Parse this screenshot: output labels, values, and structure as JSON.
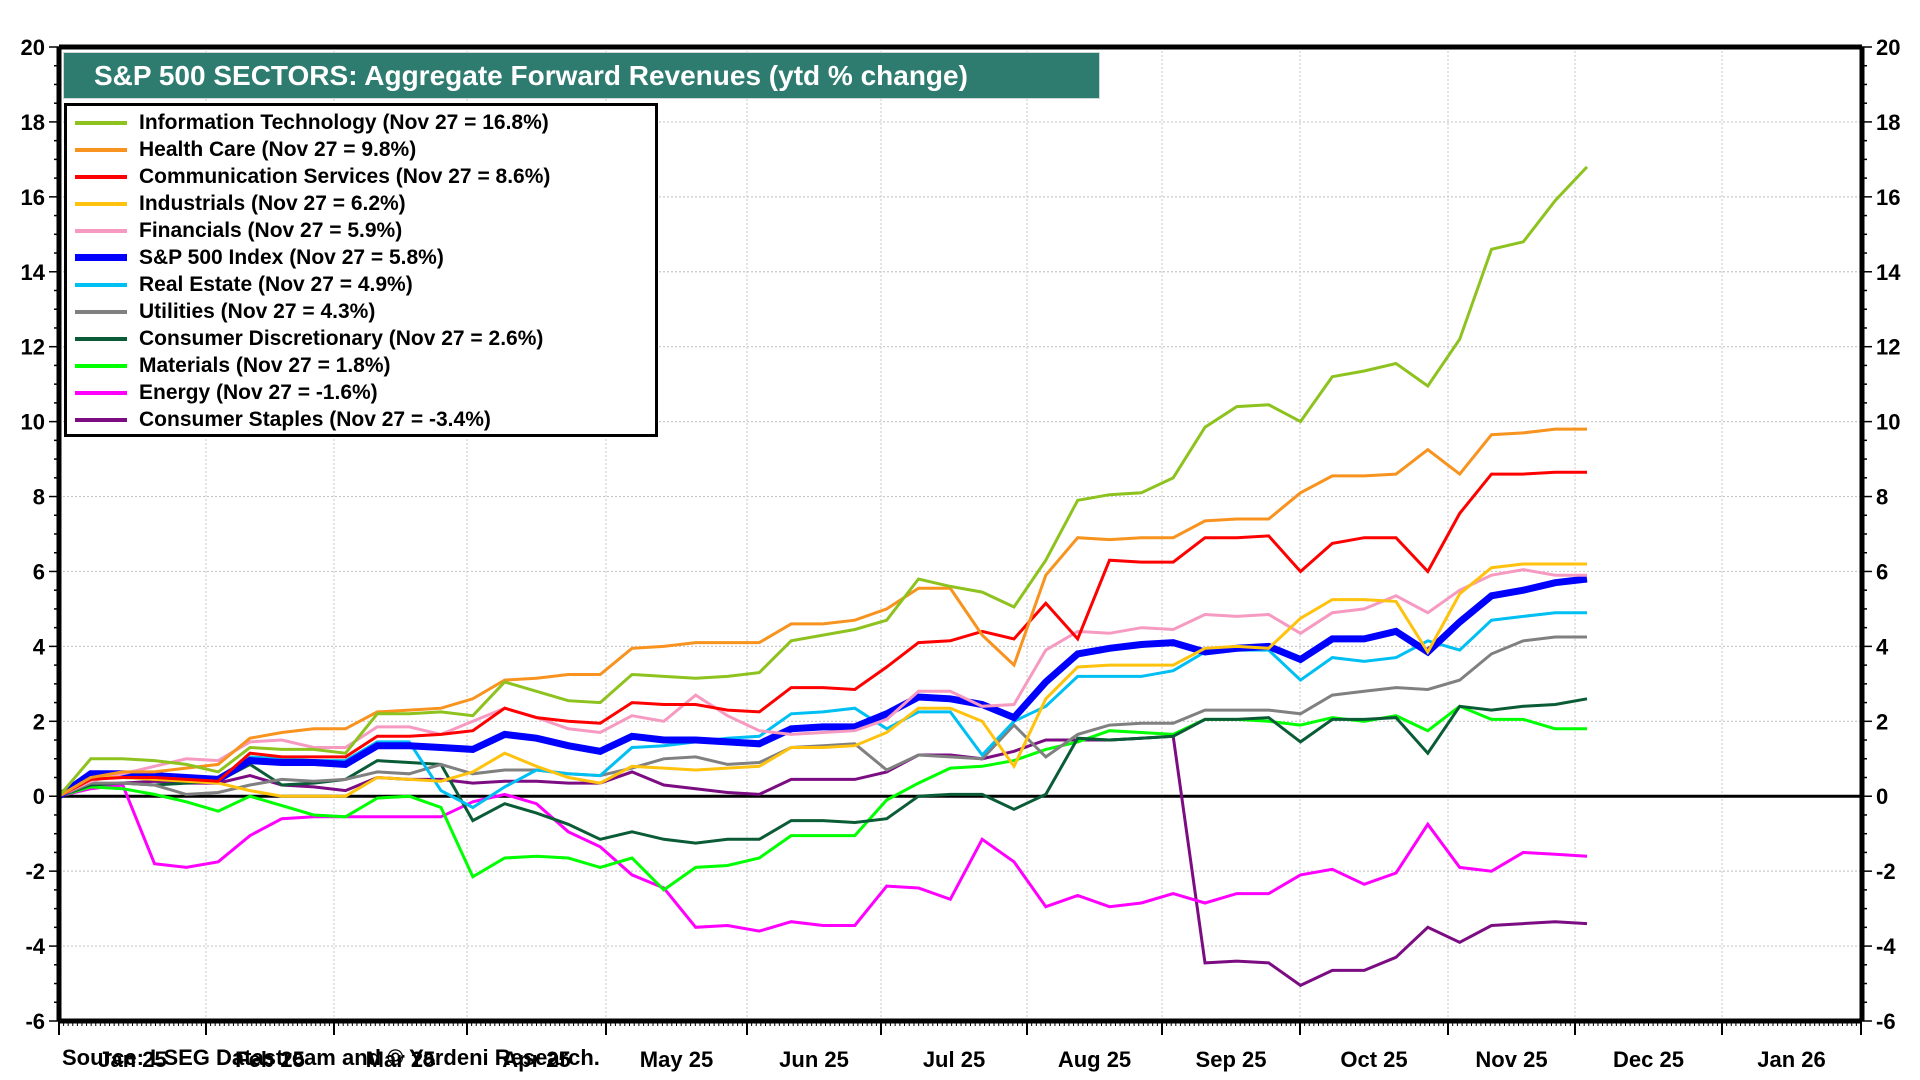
{
  "chart_data": {
    "type": "line",
    "title": "S&P 500 SECTORS: Aggregate Forward Revenues (ytd % change)",
    "xlabel": "",
    "ylabel": "",
    "ylim": [
      -6,
      20
    ],
    "yticks": [
      -6,
      -4,
      -2,
      0,
      2,
      4,
      6,
      8,
      10,
      12,
      14,
      16,
      18,
      20
    ],
    "yticks_right": [
      -6,
      -4,
      -2,
      0,
      2,
      4,
      6,
      8,
      10,
      12,
      14,
      16,
      18,
      20
    ],
    "x_range": [
      "Jan 1 2025",
      "Feb 1 2026"
    ],
    "x_ticks": [
      "Jan 25",
      "Feb 25",
      "Mar 25",
      "Apr 25",
      "May 25",
      "Jun 25",
      "Jul 25",
      "Aug 25",
      "Sep 25",
      "Oct 25",
      "Nov 25",
      "Dec 25",
      "Jan 26"
    ],
    "x_start": "Jan 1 2025",
    "x_end_data": "Nov 27 2025",
    "x_frequency": "weekly",
    "grid": true,
    "legend_position": "top-left",
    "series": [
      {
        "name": "Information Technology",
        "legend": "Information Technology (Nov 27 = 16.8%)",
        "color": "#8dc21f",
        "values": [
          0,
          1.0,
          1.0,
          0.95,
          0.85,
          0.65,
          1.3,
          1.25,
          1.25,
          1.15,
          2.2,
          2.2,
          2.25,
          2.15,
          3.05,
          2.8,
          2.55,
          2.5,
          3.25,
          3.2,
          3.15,
          3.2,
          3.3,
          4.15,
          4.3,
          4.45,
          4.7,
          5.8,
          5.6,
          5.45,
          5.05,
          6.3,
          7.9,
          8.05,
          8.1,
          8.5,
          9.85,
          10.4,
          10.45,
          10.0,
          11.2,
          11.35,
          11.55,
          10.95,
          12.2,
          14.6,
          14.8,
          15.9,
          16.8
        ]
      },
      {
        "name": "Health Care",
        "legend": "Health Care (Nov 27 = 9.8%)",
        "color": "#f7931e",
        "values": [
          0,
          0.5,
          0.65,
          0.65,
          0.75,
          0.85,
          1.55,
          1.7,
          1.8,
          1.8,
          2.25,
          2.3,
          2.35,
          2.6,
          3.1,
          3.15,
          3.25,
          3.25,
          3.95,
          4.0,
          4.1,
          4.1,
          4.1,
          4.6,
          4.6,
          4.7,
          5.0,
          5.55,
          5.55,
          4.3,
          3.5,
          5.9,
          6.9,
          6.85,
          6.9,
          6.9,
          7.35,
          7.4,
          7.4,
          8.1,
          8.55,
          8.55,
          8.6,
          9.25,
          8.6,
          9.65,
          9.7,
          9.8,
          9.8
        ]
      },
      {
        "name": "Communication Services",
        "legend": "Communication Services (Nov 27 = 8.6%)",
        "color": "#ff0000",
        "values": [
          0,
          0.45,
          0.5,
          0.5,
          0.45,
          0.4,
          1.15,
          1.05,
          1.05,
          1.05,
          1.6,
          1.6,
          1.65,
          1.75,
          2.35,
          2.1,
          2.0,
          1.95,
          2.5,
          2.45,
          2.45,
          2.3,
          2.25,
          2.9,
          2.9,
          2.85,
          3.45,
          4.1,
          4.15,
          4.4,
          4.2,
          5.15,
          4.2,
          6.3,
          6.25,
          6.25,
          6.9,
          6.9,
          6.95,
          6.0,
          6.75,
          6.9,
          6.9,
          6.0,
          7.55,
          8.6,
          8.6,
          8.65,
          8.65
        ]
      },
      {
        "name": "Industrials",
        "legend": "Industrials (Nov 27 = 6.2%)",
        "color": "#ffc20e",
        "values": [
          0,
          0.5,
          0.5,
          0.45,
          0.4,
          0.35,
          0.15,
          0.0,
          0.0,
          0.0,
          0.5,
          0.45,
          0.4,
          0.65,
          1.15,
          0.8,
          0.5,
          0.35,
          0.8,
          0.75,
          0.7,
          0.75,
          0.8,
          1.3,
          1.3,
          1.35,
          1.7,
          2.35,
          2.35,
          2.0,
          0.8,
          2.6,
          3.45,
          3.5,
          3.5,
          3.5,
          3.95,
          4.0,
          3.95,
          4.75,
          5.25,
          5.25,
          5.2,
          3.85,
          5.4,
          6.1,
          6.2,
          6.2,
          6.2
        ]
      },
      {
        "name": "Financials",
        "legend": "Financials (Nov 27 = 5.9%)",
        "color": "#f69ac1",
        "values": [
          0,
          0.4,
          0.6,
          0.8,
          1.0,
          0.95,
          1.45,
          1.5,
          1.3,
          1.3,
          1.85,
          1.85,
          1.65,
          2.0,
          2.35,
          2.1,
          1.8,
          1.7,
          2.15,
          2.0,
          2.7,
          2.15,
          1.75,
          1.65,
          1.7,
          1.75,
          2.05,
          2.8,
          2.8,
          2.4,
          2.45,
          3.9,
          4.4,
          4.35,
          4.5,
          4.45,
          4.85,
          4.8,
          4.85,
          4.35,
          4.9,
          5.0,
          5.35,
          4.9,
          5.5,
          5.9,
          6.05,
          5.9,
          5.9
        ]
      },
      {
        "name": "S&P 500 Index",
        "legend": "S&P 500 Index (Nov 27 = 5.8%)",
        "color": "#0000ff",
        "thick": true,
        "values": [
          0,
          0.6,
          0.6,
          0.55,
          0.5,
          0.45,
          0.95,
          0.9,
          0.9,
          0.85,
          1.35,
          1.35,
          1.3,
          1.25,
          1.65,
          1.55,
          1.35,
          1.2,
          1.6,
          1.5,
          1.5,
          1.45,
          1.4,
          1.8,
          1.85,
          1.85,
          2.2,
          2.65,
          2.6,
          2.45,
          2.1,
          3.05,
          3.8,
          3.95,
          4.05,
          4.1,
          3.85,
          3.95,
          4.0,
          3.65,
          4.2,
          4.2,
          4.4,
          3.85,
          4.65,
          5.35,
          5.5,
          5.7,
          5.8
        ]
      },
      {
        "name": "Real Estate",
        "legend": "Real Estate (Nov 27 = 4.9%)",
        "color": "#00bff3",
        "values": [
          0,
          0.65,
          0.6,
          0.55,
          0.5,
          0.45,
          1.05,
          1.0,
          0.95,
          0.95,
          1.45,
          1.45,
          0.15,
          -0.3,
          0.25,
          0.7,
          0.6,
          0.55,
          1.3,
          1.35,
          1.45,
          1.55,
          1.6,
          2.2,
          2.25,
          2.35,
          1.8,
          2.25,
          2.25,
          1.1,
          2.0,
          2.4,
          3.2,
          3.2,
          3.2,
          3.35,
          3.85,
          3.9,
          3.9,
          3.1,
          3.7,
          3.6,
          3.7,
          4.15,
          3.9,
          4.7,
          4.8,
          4.9,
          4.9
        ]
      },
      {
        "name": "Utilities",
        "legend": "Utilities (Nov 27 = 4.3%)",
        "color": "#808080",
        "values": [
          0,
          0.35,
          0.35,
          0.3,
          0.05,
          0.1,
          0.3,
          0.45,
          0.4,
          0.45,
          0.65,
          0.6,
          0.85,
          0.6,
          0.7,
          0.7,
          0.6,
          0.55,
          0.75,
          1.0,
          1.05,
          0.85,
          0.9,
          1.3,
          1.35,
          1.4,
          0.7,
          1.1,
          1.05,
          1.0,
          1.9,
          1.05,
          1.65,
          1.9,
          1.95,
          1.95,
          2.3,
          2.3,
          2.3,
          2.2,
          2.7,
          2.8,
          2.9,
          2.85,
          3.1,
          3.8,
          4.15,
          4.25,
          4.25
        ]
      },
      {
        "name": "Consumer Discretionary",
        "legend": "Consumer Discretionary (Nov 27 = 2.6%)",
        "color": "#0a5c36",
        "values": [
          0,
          0.3,
          0.35,
          0.3,
          0.35,
          0.4,
          0.85,
          0.3,
          0.35,
          0.45,
          0.95,
          0.9,
          0.85,
          -0.65,
          -0.2,
          -0.45,
          -0.75,
          -1.15,
          -0.95,
          -1.15,
          -1.25,
          -1.15,
          -1.15,
          -0.65,
          -0.65,
          -0.7,
          -0.6,
          0.0,
          0.05,
          0.05,
          -0.35,
          0.05,
          1.55,
          1.5,
          1.55,
          1.6,
          2.05,
          2.05,
          2.1,
          1.45,
          2.05,
          2.05,
          2.1,
          1.15,
          2.4,
          2.3,
          2.4,
          2.45,
          2.6
        ]
      },
      {
        "name": "Materials",
        "legend": "Materials (Nov 27 = 1.8%)",
        "color": "#00ff00",
        "values": [
          0,
          0.25,
          0.2,
          0.05,
          -0.15,
          -0.4,
          0.0,
          -0.25,
          -0.5,
          -0.55,
          -0.05,
          0.0,
          -0.3,
          -2.15,
          -1.65,
          -1.6,
          -1.65,
          -1.9,
          -1.65,
          -2.5,
          -1.9,
          -1.85,
          -1.65,
          -1.05,
          -1.05,
          -1.05,
          -0.1,
          0.35,
          0.75,
          0.8,
          0.95,
          1.25,
          1.45,
          1.75,
          1.7,
          1.65,
          2.05,
          2.05,
          2.0,
          1.9,
          2.1,
          2.0,
          2.15,
          1.75,
          2.4,
          2.05,
          2.05,
          1.8,
          1.8
        ]
      },
      {
        "name": "Energy",
        "legend": "Energy (Nov 27 = -1.6%)",
        "color": "#ff00ff",
        "values": [
          0,
          0.2,
          0.3,
          -1.8,
          -1.9,
          -1.75,
          -1.05,
          -0.6,
          -0.55,
          -0.55,
          -0.55,
          -0.55,
          -0.55,
          -0.15,
          0.05,
          -0.2,
          -0.95,
          -1.35,
          -2.1,
          -2.45,
          -3.5,
          -3.45,
          -3.6,
          -3.35,
          -3.45,
          -3.45,
          -2.4,
          -2.45,
          -2.75,
          -1.15,
          -1.75,
          -2.95,
          -2.65,
          -2.95,
          -2.85,
          -2.6,
          -2.85,
          -2.6,
          -2.6,
          -2.1,
          -1.95,
          -2.35,
          -2.05,
          -0.75,
          -1.9,
          -2.0,
          -1.5,
          -1.55,
          -1.6
        ]
      },
      {
        "name": "Consumer Staples",
        "legend": "Consumer Staples (Nov 27 = -3.4%)",
        "color": "#7b0c82",
        "values": [
          0,
          0.3,
          0.35,
          0.4,
          0.35,
          0.35,
          0.55,
          0.3,
          0.25,
          0.15,
          0.5,
          0.45,
          0.45,
          0.35,
          0.4,
          0.4,
          0.35,
          0.35,
          0.65,
          0.3,
          0.2,
          0.1,
          0.05,
          0.45,
          0.45,
          0.45,
          0.65,
          1.1,
          1.1,
          1.0,
          1.2,
          1.5,
          1.5,
          1.5,
          1.55,
          1.6,
          -4.45,
          -4.4,
          -4.45,
          -5.05,
          -4.65,
          -4.65,
          -4.3,
          -3.5,
          -3.9,
          -3.45,
          -3.4,
          -3.35,
          -3.4
        ]
      }
    ]
  },
  "source": "Source: LSEG Datastream and © Yardeni Research."
}
